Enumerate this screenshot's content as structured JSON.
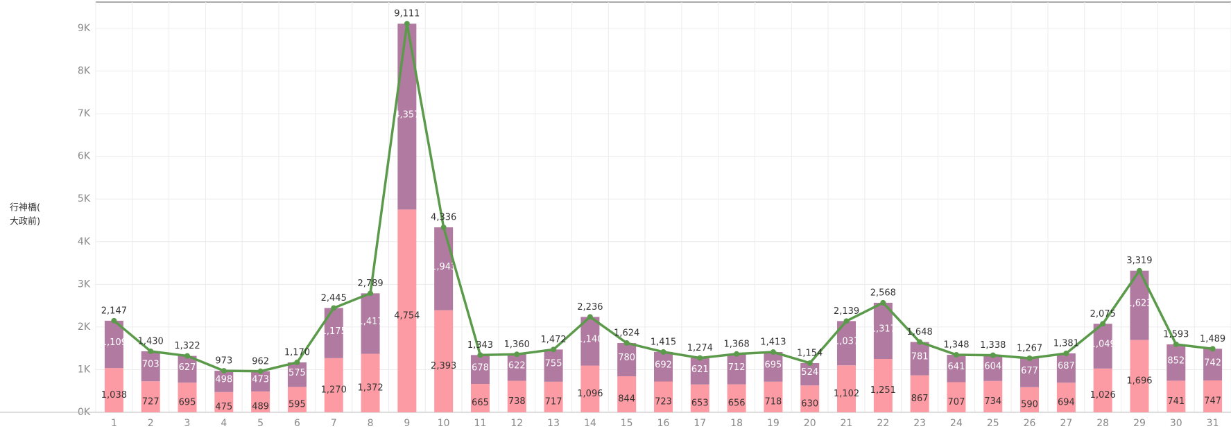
{
  "chart_data": {
    "type": "bar",
    "stacked": true,
    "grid": true,
    "ylabel": [
      "行神橋(",
      "大政前)"
    ],
    "categories": [
      "1",
      "2",
      "3",
      "4",
      "5",
      "6",
      "7",
      "8",
      "9",
      "10",
      "11",
      "12",
      "13",
      "14",
      "15",
      "16",
      "17",
      "18",
      "19",
      "20",
      "21",
      "22",
      "23",
      "24",
      "25",
      "26",
      "27",
      "28",
      "29",
      "30",
      "31"
    ],
    "ylim": [
      0,
      9111
    ],
    "yticks": [
      {
        "value": 0,
        "label": "0K"
      },
      {
        "value": 1000,
        "label": "1K"
      },
      {
        "value": 2000,
        "label": "2K"
      },
      {
        "value": 3000,
        "label": "3K"
      },
      {
        "value": 4000,
        "label": "4K"
      },
      {
        "value": 5000,
        "label": "5K"
      },
      {
        "value": 6000,
        "label": "6K"
      },
      {
        "value": 7000,
        "label": "7K"
      },
      {
        "value": 8000,
        "label": "8K"
      },
      {
        "value": 9000,
        "label": "9K"
      }
    ],
    "series": [
      {
        "color": "#fd9ba4",
        "label_color": "#333333",
        "values": [
          1038,
          727,
          695,
          475,
          489,
          595,
          1270,
          1372,
          4754,
          2393,
          665,
          738,
          717,
          1096,
          844,
          723,
          653,
          656,
          718,
          630,
          1102,
          1251,
          867,
          707,
          734,
          590,
          694,
          1026,
          1696,
          741,
          747
        ],
        "value_labels": [
          "1,038",
          "727",
          "695",
          "475",
          "489",
          "595",
          "1,270",
          "1,372",
          "4,754",
          "2,393",
          "665",
          "738",
          "717",
          "1,096",
          "844",
          "723",
          "653",
          "656",
          "718",
          "630",
          "1,102",
          "1,251",
          "867",
          "707",
          "734",
          "590",
          "694",
          "1,026",
          "1,696",
          "741",
          "747"
        ]
      },
      {
        "color": "#b07aa1",
        "label_color": "#ffffff",
        "values": [
          1109,
          703,
          627,
          498,
          473,
          575,
          1175,
          1417,
          4357,
          1943,
          678,
          622,
          755,
          1140,
          780,
          692,
          621,
          712,
          695,
          524,
          1037,
          1317,
          781,
          641,
          604,
          677,
          687,
          1049,
          1623,
          852,
          742
        ],
        "value_labels": [
          "1,109",
          "703",
          "627",
          "498",
          "473",
          "575",
          "1,175",
          "1,417",
          "4,357",
          "1,943",
          "678",
          "622",
          "755",
          "1,140",
          "780",
          "692",
          "621",
          "712",
          "695",
          "524",
          "1,037",
          "1,317",
          "781",
          "641",
          "604",
          "677",
          "687",
          "1,049",
          "1,623",
          "852",
          "742"
        ]
      },
      {
        "type": "line",
        "color": "#5a9a4a",
        "label_color": "#333333",
        "values": [
          2147,
          1430,
          1322,
          973,
          962,
          1170,
          2445,
          2789,
          9111,
          4336,
          1343,
          1360,
          1472,
          2236,
          1624,
          1415,
          1274,
          1368,
          1413,
          1154,
          2139,
          2568,
          1648,
          1348,
          1338,
          1267,
          1381,
          2075,
          3319,
          1593,
          1489
        ],
        "value_labels": [
          "2,147",
          "1,430",
          "1,322",
          "973",
          "962",
          "1,170",
          "2,445",
          "2,789",
          "9,111",
          "4,336",
          "1,343",
          "1,360",
          "1,472",
          "2,236",
          "1,624",
          "1,415",
          "1,274",
          "1,368",
          "1,413",
          "1,154",
          "2,139",
          "2,568",
          "1,648",
          "1,348",
          "1,338",
          "1,267",
          "1,381",
          "2,075",
          "3,319",
          "1,593",
          "1,489"
        ]
      }
    ]
  }
}
